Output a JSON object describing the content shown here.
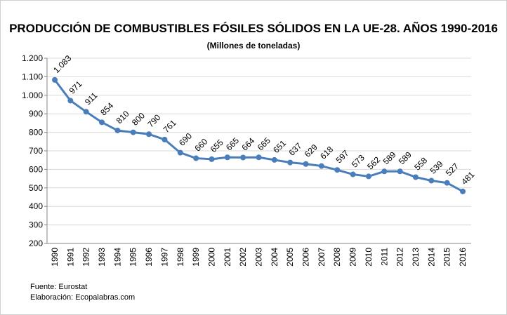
{
  "chart_data": {
    "type": "line",
    "title": "PRODUCCIÓN DE COMBUSTIBLES FÓSILES SÓLIDOS EN LA UE-28. AÑOS 1990-2016",
    "subtitle": "(Millones de toneladas)",
    "categories": [
      "1990",
      "1991",
      "1992",
      "1993",
      "1994",
      "1995",
      "1996",
      "1997",
      "1998",
      "1999",
      "2000",
      "2001",
      "2002",
      "2003",
      "2004",
      "2005",
      "2006",
      "2007",
      "2008",
      "2009",
      "2010",
      "2011",
      "2012",
      "2013",
      "2014",
      "2015",
      "2016"
    ],
    "values": [
      1083,
      971,
      911,
      854,
      810,
      800,
      790,
      761,
      690,
      660,
      655,
      665,
      664,
      665,
      651,
      637,
      629,
      618,
      597,
      573,
      562,
      589,
      589,
      558,
      539,
      527,
      481
    ],
    "data_labels": [
      "1.083",
      "971",
      "911",
      "854",
      "810",
      "800",
      "790",
      "761",
      "690",
      "660",
      "655",
      "665",
      "664",
      "665",
      "651",
      "637",
      "629",
      "618",
      "597",
      "573",
      "562",
      "589",
      "589",
      "558",
      "539",
      "527",
      "481"
    ],
    "yticks": [
      "200",
      "300",
      "400",
      "500",
      "600",
      "700",
      "800",
      "900",
      "1.000",
      "1.100",
      "1.200"
    ],
    "ylim": [
      200,
      1200
    ],
    "grid": true,
    "line_color": "#4a7ebb"
  },
  "footer": {
    "source": "Fuente: Eurostat",
    "credit": "Elaboración: Ecopalabras.com"
  }
}
